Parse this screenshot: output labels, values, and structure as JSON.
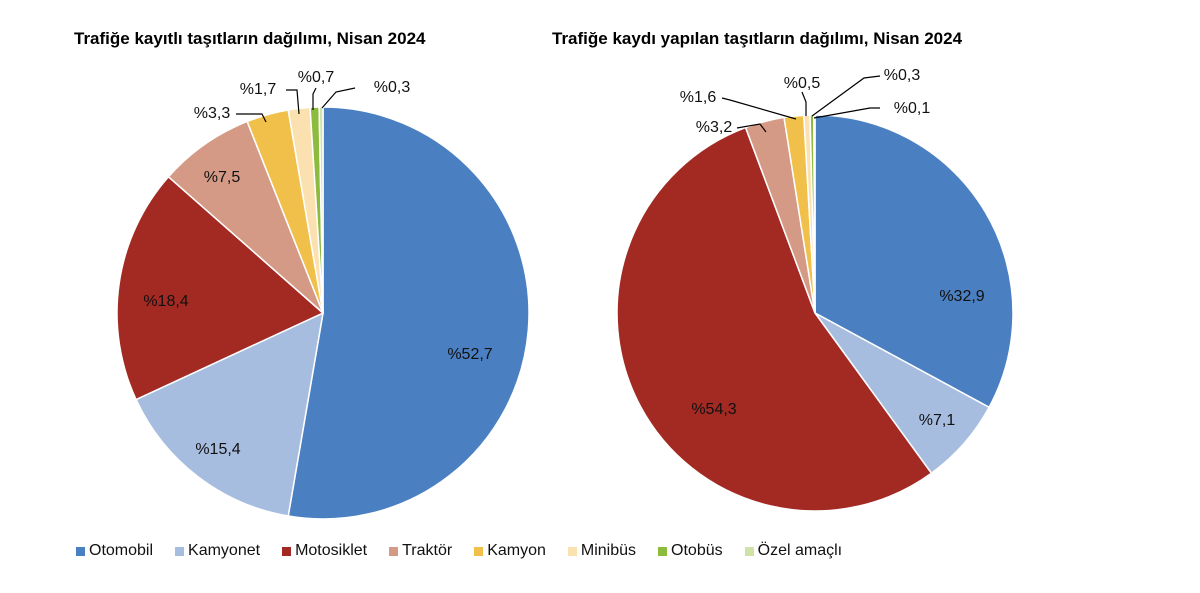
{
  "chart_data": [
    {
      "type": "pie",
      "title": "Trafiğe kayıtlı taşıtların dağılımı, Nisan 2024",
      "categories": [
        "Otomobil",
        "Kamyonet",
        "Motosiklet",
        "Traktör",
        "Kamyon",
        "Minibüs",
        "Otobüs",
        "Özel amaçlı"
      ],
      "values": [
        52.7,
        15.4,
        18.4,
        7.5,
        3.3,
        1.7,
        0.7,
        0.3
      ],
      "labels": [
        "%52,7",
        "%15,4",
        "%18,4",
        "%7,5",
        "%3,3",
        "%1,7",
        "%0,7",
        "%0,3"
      ]
    },
    {
      "type": "pie",
      "title": "Trafiğe kaydı yapılan taşıtların dağılımı, Nisan 2024",
      "categories": [
        "Otomobil",
        "Kamyonet",
        "Motosiklet",
        "Traktör",
        "Kamyon",
        "Minibüs",
        "Otobüs",
        "Özel amaçlı"
      ],
      "values": [
        32.9,
        7.1,
        54.3,
        3.2,
        1.6,
        0.5,
        0.3,
        0.1
      ],
      "labels": [
        "%32,9",
        "%7,1",
        "%54,3",
        "%3,2",
        "%1,6",
        "%0,5",
        "%0,3",
        "%0,1"
      ]
    }
  ],
  "legend": {
    "placement": "bottom",
    "items": [
      {
        "label": "Otomobil",
        "color": "#4a7fc1"
      },
      {
        "label": "Kamyonet",
        "color": "#a7bde0"
      },
      {
        "label": "Motosiklet",
        "color": "#a32a22"
      },
      {
        "label": "Traktör",
        "color": "#d49a86"
      },
      {
        "label": "Kamyon",
        "color": "#f0c04a"
      },
      {
        "label": "Minibüs",
        "color": "#fbe1b0"
      },
      {
        "label": "Otobüs",
        "color": "#8dbb3e"
      },
      {
        "label": "Özel amaçlı",
        "color": "#cfe3a8"
      }
    ]
  }
}
